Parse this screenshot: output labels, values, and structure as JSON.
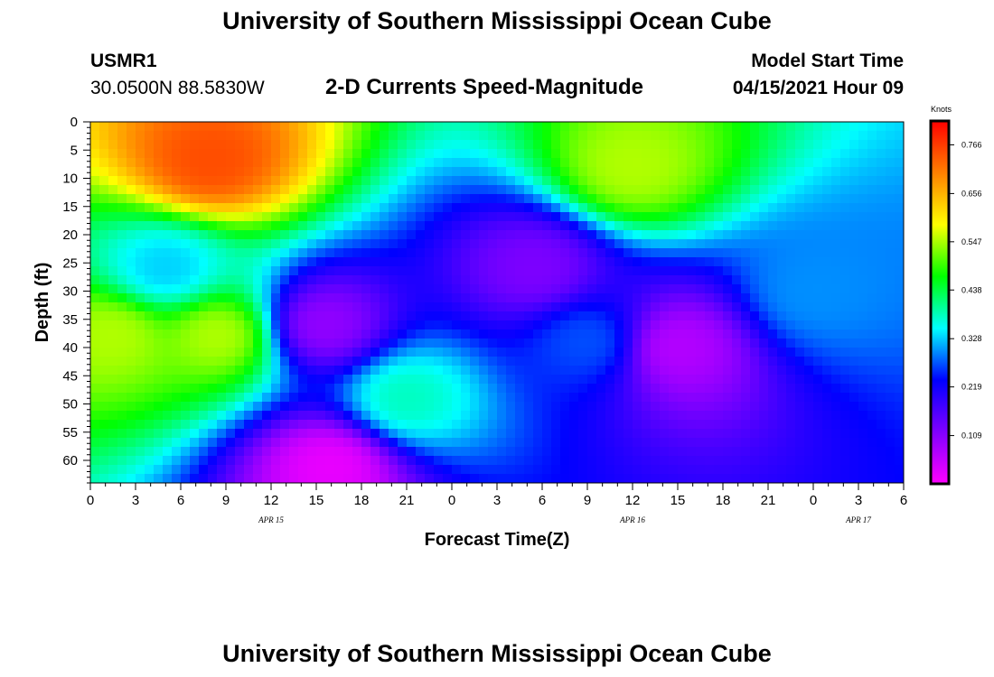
{
  "header": {
    "title_top": "University of Southern Mississippi Ocean Cube",
    "title_bottom": "University of Southern Mississippi Ocean Cube",
    "station_id": "USMR1",
    "station_coords": "30.0500N  88.5830W",
    "product": "2-D Currents Speed-Magnitude",
    "model_start_label": "Model Start Time",
    "model_start_value": "04/15/2021 Hour 09"
  },
  "chart_data": {
    "type": "heatmap",
    "title": "2-D Currents Speed-Magnitude",
    "xlabel": "Forecast Time(Z)",
    "ylabel": "Depth (ft)",
    "y_ticks": [
      "0",
      "5",
      "10",
      "15",
      "20",
      "25",
      "30",
      "35",
      "40",
      "45",
      "50",
      "55",
      "60"
    ],
    "y_range": [
      0,
      64
    ],
    "x_ticks": [
      "0",
      "3",
      "6",
      "9",
      "12",
      "15",
      "18",
      "21",
      "0",
      "3",
      "6",
      "9",
      "12",
      "15",
      "18",
      "21",
      "0",
      "3",
      "6"
    ],
    "x_range_hours": [
      0,
      54
    ],
    "date_labels": [
      {
        "label": "APR 15",
        "hour": 12
      },
      {
        "label": "APR 16",
        "hour": 36
      },
      {
        "label": "APR 17",
        "hour": 51
      }
    ],
    "colorbar": {
      "units": "Knots",
      "ticks": [
        "0.766",
        "0.656",
        "0.547",
        "0.438",
        "0.328",
        "0.219",
        "0.109"
      ],
      "range": [
        0.0,
        0.82
      ],
      "colors": [
        "#ff00ff",
        "#8000ff",
        "#0000ff",
        "#00ffff",
        "#00ff00",
        "#ffff00",
        "#ff8000",
        "#ff0000"
      ]
    },
    "features": [
      {
        "t": 8,
        "d": 7,
        "speed": 0.75
      },
      {
        "t": 1.5,
        "d": 38,
        "speed": 0.55
      },
      {
        "t": 8.5,
        "d": 38,
        "speed": 0.55
      },
      {
        "t": 5,
        "d": 26,
        "speed": 0.33
      },
      {
        "t": 15.5,
        "d": 36,
        "speed": 0.1
      },
      {
        "t": 21,
        "d": 49,
        "speed": 0.38
      },
      {
        "t": 29.5,
        "d": 26,
        "speed": 0.12
      },
      {
        "t": 33,
        "d": 39,
        "speed": 0.27
      },
      {
        "t": 36,
        "d": 8,
        "speed": 0.55
      },
      {
        "t": 39,
        "d": 40,
        "speed": 0.07
      },
      {
        "t": 48,
        "d": 30,
        "speed": 0.3
      },
      {
        "t": 16,
        "d": 61,
        "speed": 0.02
      }
    ]
  }
}
